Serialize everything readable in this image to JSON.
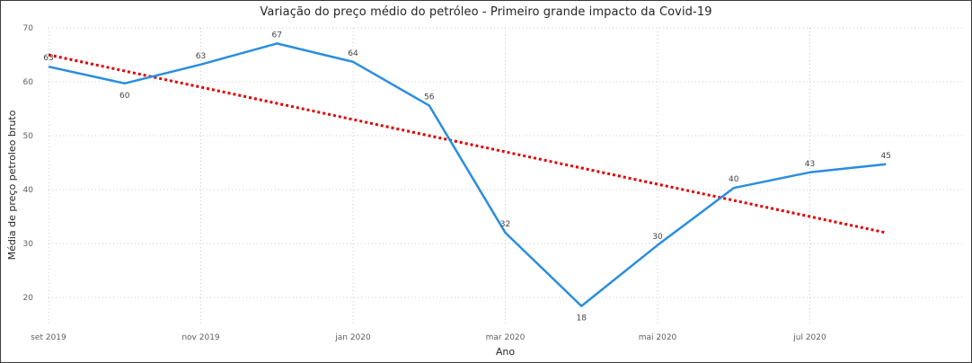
{
  "chart_data": {
    "type": "line",
    "title": "Variação do preço médio do petróleo - Primeiro grande impacto da Covid-19",
    "xlabel": "Ano",
    "ylabel": "Média de preço petroleo bruto",
    "x_dates": [
      "2019-09",
      "2019-10",
      "2019-11",
      "2019-12",
      "2020-01",
      "2020-02",
      "2020-03",
      "2020-04",
      "2020-05",
      "2020-06",
      "2020-07",
      "2020-08"
    ],
    "x_tick_labels": [
      {
        "label": "set 2019",
        "date": "2019-09"
      },
      {
        "label": "nov 2019",
        "date": "2019-11"
      },
      {
        "label": "jan 2020",
        "date": "2020-01"
      },
      {
        "label": "mar 2020",
        "date": "2020-03"
      },
      {
        "label": "mai 2020",
        "date": "2020-05"
      },
      {
        "label": "jul 2020",
        "date": "2020-07"
      }
    ],
    "ylim": [
      15,
      70
    ],
    "y_ticks": [
      20,
      30,
      40,
      50,
      60,
      70
    ],
    "grid": true,
    "series": [
      {
        "type": "line",
        "color": "#2a8de0",
        "values": [
          62.8,
          59.7,
          63.2,
          67.1,
          63.7,
          55.6,
          32.0,
          18.4,
          29.7,
          40.3,
          43.2,
          44.7
        ],
        "labels": [
          "63",
          "60",
          "63",
          "67",
          "64",
          "56",
          "32",
          "18",
          "30",
          "40",
          "43",
          "45"
        ],
        "label_pos": [
          "above",
          "below",
          "above",
          "above",
          "above",
          "above",
          "above",
          "below",
          "above",
          "above",
          "above",
          "above"
        ]
      },
      {
        "type": "trend",
        "style": "dotted",
        "color": "#e00000",
        "start": 65.0,
        "end": 32.0
      }
    ]
  }
}
